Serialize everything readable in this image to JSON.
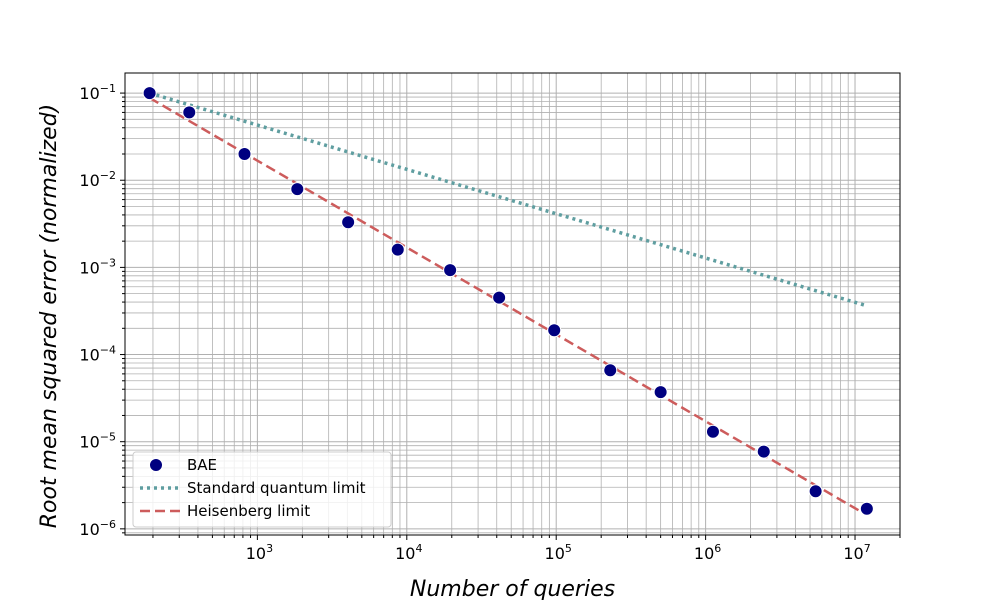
{
  "chart_data": {
    "type": "scatter",
    "title": "",
    "xlabel": "Number of queries",
    "ylabel": "Root mean squared error (normalized)",
    "xscale": "log",
    "yscale": "log",
    "xlim": [
      130,
      20000000
    ],
    "ylim": [
      8.5e-07,
      0.17
    ],
    "grid": true,
    "grid_minor": true,
    "legend_position": "lower-left",
    "x_ticks": [
      {
        "value": 1000,
        "base": "10",
        "exp": "3"
      },
      {
        "value": 10000,
        "base": "10",
        "exp": "4"
      },
      {
        "value": 100000,
        "base": "10",
        "exp": "5"
      },
      {
        "value": 1000000,
        "base": "10",
        "exp": "6"
      },
      {
        "value": 10000000,
        "base": "10",
        "exp": "7"
      }
    ],
    "y_ticks": [
      {
        "value": 0.1,
        "base": "10",
        "exp": "−1"
      },
      {
        "value": 0.01,
        "base": "10",
        "exp": "−2"
      },
      {
        "value": 0.001,
        "base": "10",
        "exp": "−3"
      },
      {
        "value": 0.0001,
        "base": "10",
        "exp": "−4"
      },
      {
        "value": 1e-05,
        "base": "10",
        "exp": "−5"
      },
      {
        "value": 1e-06,
        "base": "10",
        "exp": "−6"
      }
    ],
    "series": [
      {
        "name": "BAE",
        "kind": "scatter",
        "color": "#000080",
        "edge_color": "#ffffff",
        "points": [
          {
            "x": 190,
            "y": 0.1
          },
          {
            "x": 350,
            "y": 0.06
          },
          {
            "x": 820,
            "y": 0.02
          },
          {
            "x": 1850,
            "y": 0.0079
          },
          {
            "x": 4050,
            "y": 0.0033
          },
          {
            "x": 8700,
            "y": 0.0016
          },
          {
            "x": 19500,
            "y": 0.00093
          },
          {
            "x": 41500,
            "y": 0.00045
          },
          {
            "x": 97000,
            "y": 0.00019
          },
          {
            "x": 230000,
            "y": 6.6e-05
          },
          {
            "x": 500000,
            "y": 3.7e-05
          },
          {
            "x": 1120000,
            "y": 1.3e-05
          },
          {
            "x": 2450000,
            "y": 7.7e-06
          },
          {
            "x": 5450000,
            "y": 2.7e-06
          },
          {
            "x": 12000000,
            "y": 1.7e-06
          }
        ]
      },
      {
        "name": "Standard quantum limit",
        "kind": "line",
        "style": "dotted",
        "color": "#5f9ea0",
        "points": [
          {
            "x": 190,
            "y": 0.1
          },
          {
            "x": 11500000,
            "y": 0.00037
          }
        ]
      },
      {
        "name": "Heisenberg limit",
        "kind": "line",
        "style": "dashed",
        "color": "#cd5c5c",
        "points": [
          {
            "x": 190,
            "y": 0.088
          },
          {
            "x": 11500000,
            "y": 1.5e-06
          }
        ]
      }
    ]
  }
}
